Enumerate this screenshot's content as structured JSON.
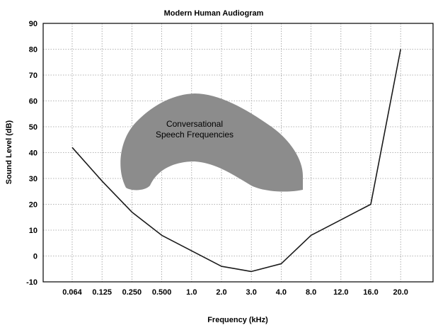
{
  "chart_data": {
    "type": "line",
    "title": "Modern Human Audiogram",
    "xlabel": "Frequency (kHz)",
    "ylabel": "Sound Level (dB)",
    "ylim": [
      -10,
      90
    ],
    "yticks": [
      "90",
      "80",
      "70",
      "60",
      "50",
      "40",
      "30",
      "20",
      "10",
      "0",
      "-10"
    ],
    "x_categories": [
      "0.064",
      "0.125",
      "0.250",
      "0.500",
      "1.0",
      "2.0",
      "3.0",
      "4.0",
      "8.0",
      "12.0",
      "16.0",
      "20.0"
    ],
    "grid": true,
    "series": [
      {
        "values": [
          {
            "x": "0.064",
            "y": 42
          },
          {
            "x": "0.125",
            "y": 29
          },
          {
            "x": "0.250",
            "y": 17
          },
          {
            "x": "0.500",
            "y": 8
          },
          {
            "x": "1.0",
            "y": 2
          },
          {
            "x": "2.0",
            "y": -4
          },
          {
            "x": "3.0",
            "y": -6
          },
          {
            "x": "4.0",
            "y": -3
          },
          {
            "x": "8.0",
            "y": 8
          },
          {
            "x": "12.0",
            "y": 14
          },
          {
            "x": "16.0",
            "y": 20
          },
          {
            "x": "20.0",
            "y": 80
          }
        ]
      }
    ],
    "annotation": {
      "line1": "Conversational",
      "line2": "Speech Frequencies",
      "fill": "#8c8c8c"
    },
    "colors": {
      "line": "#1a1a1a",
      "grid": "#9a9a9a",
      "frame": "#000000"
    }
  }
}
